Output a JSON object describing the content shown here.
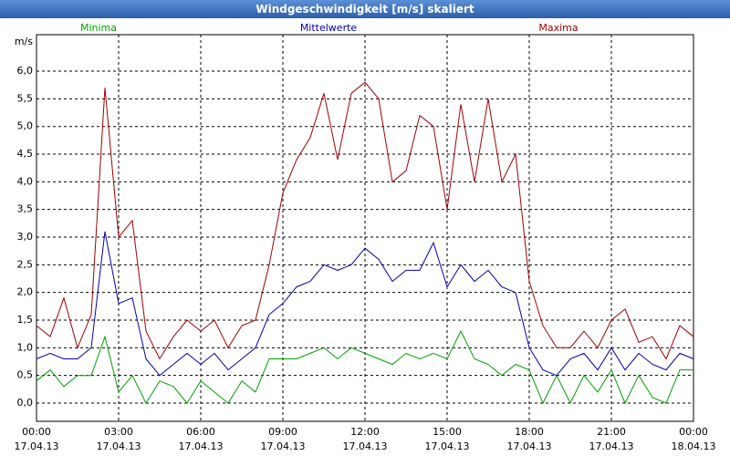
{
  "chart_data": {
    "type": "line",
    "title": "Windgeschwindigkeit [m/s] skaliert",
    "y_label": "m/s",
    "x": [
      0,
      0.5,
      1,
      1.5,
      2,
      2.5,
      3,
      3.5,
      4,
      4.5,
      5,
      5.5,
      6,
      6.5,
      7,
      7.5,
      8,
      8.5,
      9,
      9.5,
      10,
      10.5,
      11,
      11.5,
      12,
      12.5,
      13,
      13.5,
      14,
      14.5,
      15,
      15.5,
      16,
      16.5,
      17,
      17.5,
      18,
      18.5,
      19,
      19.5,
      20,
      20.5,
      21,
      21.5,
      22,
      22.5,
      23,
      23.5,
      24
    ],
    "series": [
      {
        "name": "Minima",
        "color": "#00a000",
        "values": [
          0.4,
          0.6,
          0.3,
          0.5,
          0.5,
          1.2,
          0.2,
          0.5,
          0.0,
          0.4,
          0.3,
          0.0,
          0.4,
          0.2,
          0.0,
          0.4,
          0.2,
          0.8,
          0.8,
          0.8,
          0.9,
          1.0,
          0.8,
          1.0,
          0.9,
          0.8,
          0.7,
          0.9,
          0.8,
          0.9,
          0.8,
          1.3,
          0.8,
          0.7,
          0.5,
          0.7,
          0.6,
          0.0,
          0.5,
          0.0,
          0.5,
          0.2,
          0.6,
          0.0,
          0.5,
          0.1,
          0.0,
          0.6,
          0.6
        ]
      },
      {
        "name": "Mittelwerte",
        "color": "#0000b0",
        "values": [
          0.8,
          0.9,
          0.8,
          0.8,
          1.0,
          3.1,
          1.8,
          1.9,
          0.8,
          0.5,
          0.7,
          0.9,
          0.7,
          0.9,
          0.6,
          0.8,
          1.0,
          1.6,
          1.8,
          2.1,
          2.2,
          2.5,
          2.4,
          2.5,
          2.8,
          2.6,
          2.2,
          2.4,
          2.4,
          2.9,
          2.1,
          2.5,
          2.2,
          2.4,
          2.1,
          2.0,
          1.0,
          0.6,
          0.5,
          0.8,
          0.9,
          0.6,
          1.0,
          0.6,
          0.9,
          0.7,
          0.6,
          0.9,
          0.8
        ]
      },
      {
        "name": "Maxima",
        "color": "#a00000",
        "values": [
          1.4,
          1.2,
          1.9,
          1.0,
          1.6,
          5.7,
          3.0,
          3.3,
          1.3,
          0.8,
          1.2,
          1.5,
          1.3,
          1.5,
          1.0,
          1.4,
          1.5,
          2.5,
          3.8,
          4.4,
          4.8,
          5.6,
          4.4,
          5.6,
          5.8,
          5.5,
          4.0,
          4.2,
          5.2,
          5.0,
          3.5,
          5.4,
          4.0,
          5.5,
          4.0,
          4.5,
          2.2,
          1.4,
          1.0,
          1.0,
          1.3,
          1.0,
          1.5,
          1.7,
          1.1,
          1.2,
          0.8,
          1.4,
          1.2
        ]
      }
    ],
    "xlim": [
      0,
      24
    ],
    "xticks": [
      {
        "value": 0,
        "label": "00:00",
        "date": "17.04.13"
      },
      {
        "value": 3,
        "label": "03:00",
        "date": "17.04.13"
      },
      {
        "value": 6,
        "label": "06:00",
        "date": "17.04.13"
      },
      {
        "value": 9,
        "label": "09:00",
        "date": "17.04.13"
      },
      {
        "value": 12,
        "label": "12:00",
        "date": "17.04.13"
      },
      {
        "value": 15,
        "label": "15:00",
        "date": "17.04.13"
      },
      {
        "value": 18,
        "label": "18:00",
        "date": "17.04.13"
      },
      {
        "value": 21,
        "label": "21:00",
        "date": "17.04.13"
      },
      {
        "value": 24,
        "label": "00:00",
        "date": "18.04.13"
      }
    ],
    "ylim": [
      -0.33,
      6.66
    ],
    "yticks": [
      {
        "value": 0,
        "label": "0,0"
      },
      {
        "value": 0.5,
        "label": "0,5"
      },
      {
        "value": 1,
        "label": "1,0"
      },
      {
        "value": 1.5,
        "label": "1,5"
      },
      {
        "value": 2,
        "label": "2,0"
      },
      {
        "value": 2.5,
        "label": "2,5"
      },
      {
        "value": 3,
        "label": "3,0"
      },
      {
        "value": 3.5,
        "label": "3,5"
      },
      {
        "value": 4,
        "label": "4,0"
      },
      {
        "value": 4.5,
        "label": "4,5"
      },
      {
        "value": 5,
        "label": "5,0"
      },
      {
        "value": 5.5,
        "label": "5,5"
      },
      {
        "value": 6,
        "label": "6,0"
      }
    ],
    "grid": true
  }
}
